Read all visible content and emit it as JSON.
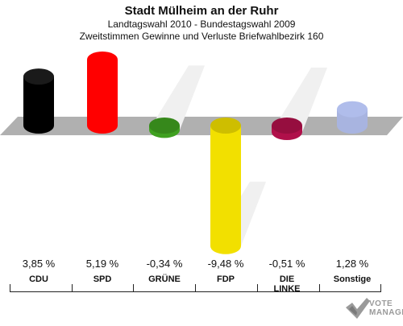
{
  "header": {
    "title": "Stadt Mülheim an der Ruhr",
    "subtitle1": "Landtagswahl 2010 - Bundestagswahl 2009",
    "subtitle2": "Zweitstimmen Gewinne und Verluste Briefwahlbezirk 160"
  },
  "chart_data": {
    "type": "bar",
    "title": "Stadt Mülheim an der Ruhr",
    "subtitle": "Landtagswahl 2010 - Bundestagswahl 2009 / Zweitstimmen Gewinne und Verluste Briefwahlbezirk 160",
    "categories": [
      "CDU",
      "SPD",
      "GRÜNE",
      "FDP",
      "DIE LINKE",
      "Sonstige"
    ],
    "values": [
      3.85,
      5.19,
      -0.34,
      -9.48,
      -0.51,
      1.28
    ],
    "value_labels": [
      "3,85 %",
      "5,19 %",
      "-0,34 %",
      "-9,48 %",
      "-0,51 %",
      "1,28 %"
    ],
    "colors": [
      "#000000",
      "#ff0000",
      "#3fa020",
      "#f2e000",
      "#b0104a",
      "#a8b4e0"
    ],
    "label_lines": [
      [
        "CDU"
      ],
      [
        "SPD"
      ],
      [
        "GRÜNE"
      ],
      [
        "FDP"
      ],
      [
        "DIE",
        "LINKE"
      ],
      [
        "Sonstige"
      ]
    ]
  },
  "logo": {
    "line1": "VOTE",
    "line2": "MANAGER"
  }
}
